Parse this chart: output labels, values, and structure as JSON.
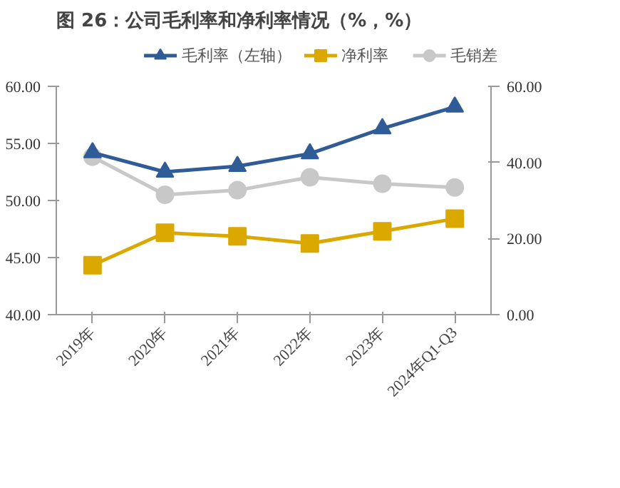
{
  "chart_data": {
    "type": "line",
    "title": "图 26：公司毛利率和净利率情况（%，%）",
    "categories": [
      "2019年",
      "2020年",
      "2021年",
      "2022年",
      "2023年",
      "2024年Q1-Q3"
    ],
    "series": [
      {
        "name": "毛利率（左轴）",
        "color": "#2f5c97",
        "marker": "triangle",
        "values": [
          54.2,
          52.5,
          53.0,
          54.1,
          56.3,
          58.2
        ]
      },
      {
        "name": "净利率",
        "color": "#dba800",
        "marker": "square",
        "axis": "y2",
        "values": [
          13.0,
          21.5,
          20.6,
          18.7,
          21.9,
          25.2
        ]
      },
      {
        "name": "毛销差",
        "color": "#c8c8c8",
        "marker": "circle",
        "axis": "y2",
        "values": [
          41.5,
          31.5,
          32.7,
          36.1,
          34.4,
          33.4
        ]
      }
    ],
    "ylim": [
      40,
      60
    ],
    "yticks": [
      {
        "value": 40,
        "label": "40.00"
      },
      {
        "value": 45,
        "label": "45.00"
      },
      {
        "value": 50,
        "label": "50.00"
      },
      {
        "value": 55,
        "label": "55.00"
      },
      {
        "value": 60,
        "label": "60.00"
      }
    ],
    "y2lim": [
      0,
      60
    ],
    "y2ticks": [
      {
        "value": 0,
        "label": "0.00"
      },
      {
        "value": 20,
        "label": "20.00"
      },
      {
        "value": 40,
        "label": "40.00"
      },
      {
        "value": 60,
        "label": "60.00"
      }
    ],
    "legend": "top",
    "grid": false,
    "line_style": "solid"
  }
}
